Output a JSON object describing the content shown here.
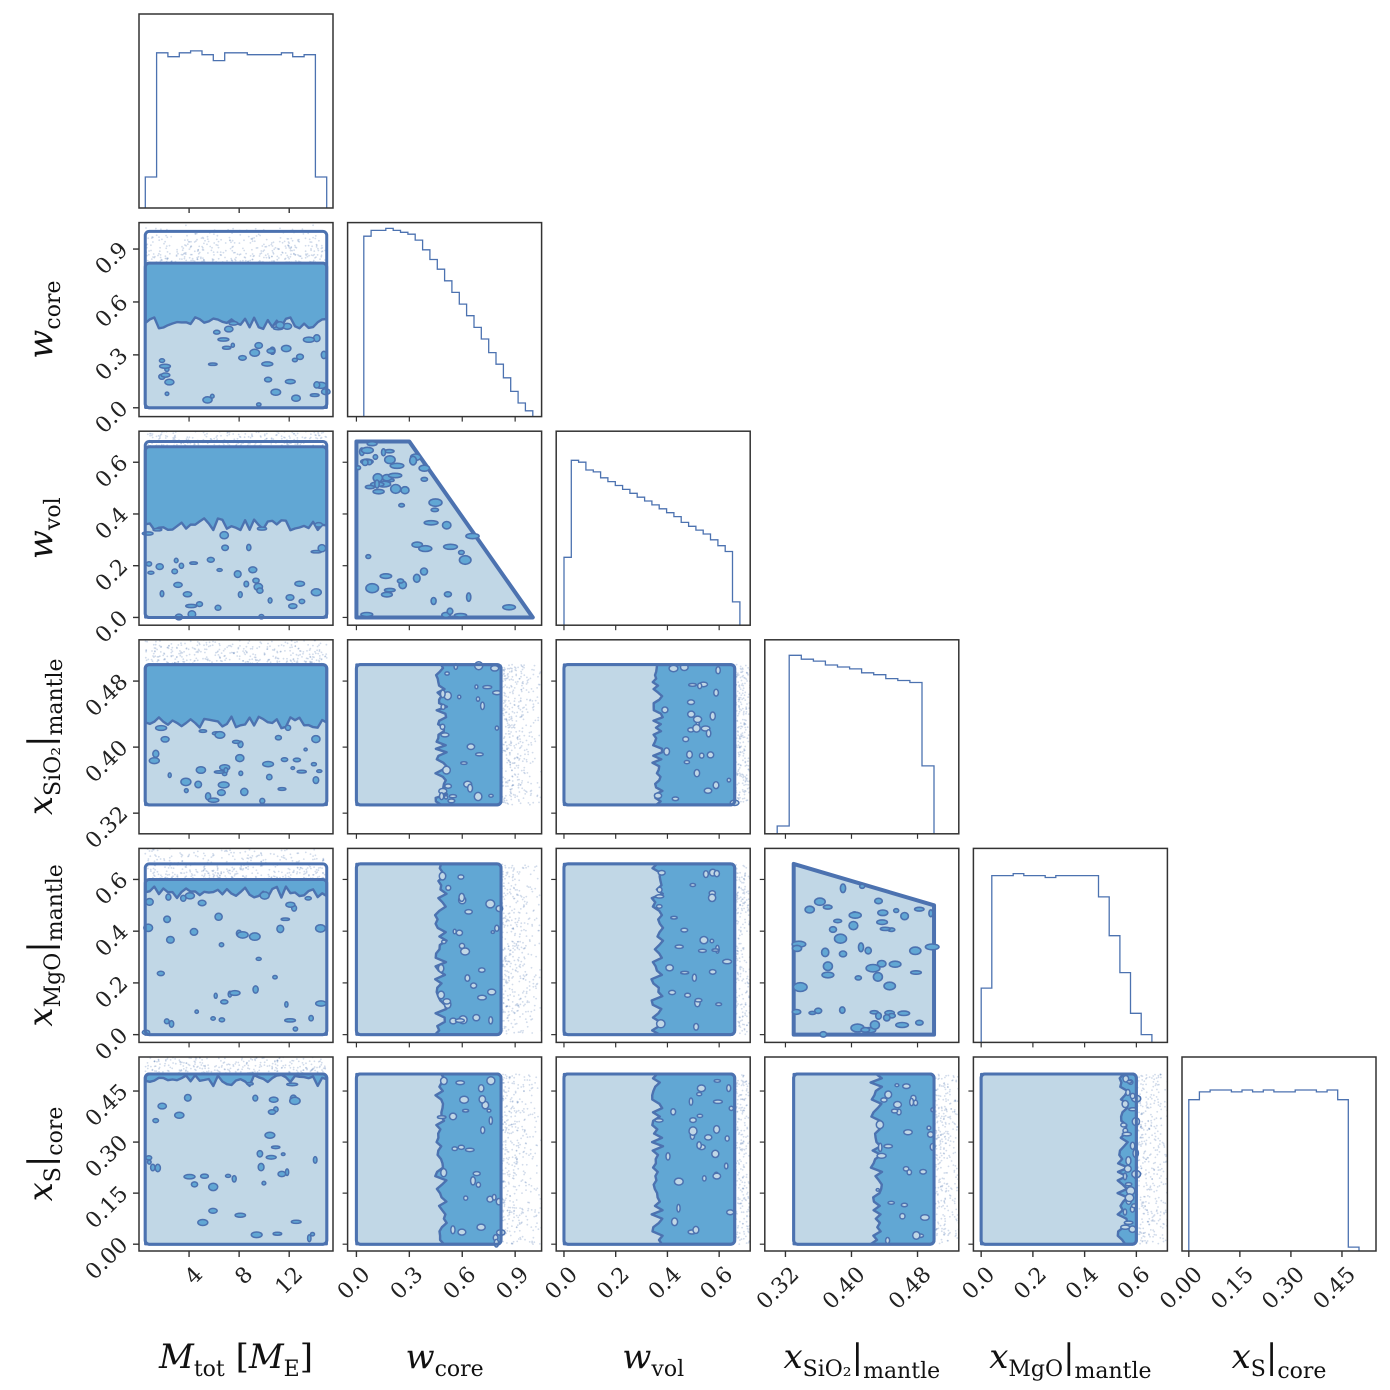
{
  "figure": {
    "type": "corner-plot",
    "n_params": 6
  },
  "colors": {
    "line": "#4c72b0",
    "level1": "#c1d7e6",
    "level2": "#61a7d4",
    "contour": "#4c72b0",
    "points": "#4c72b0",
    "frame": "#333333"
  },
  "params": [
    {
      "id": "Mtot",
      "label": {
        "main": "M",
        "sub": "tot",
        "suffix_pre": " [",
        "suffix_main": "M",
        "suffix_sub": "E",
        "suffix_post": "]"
      },
      "ticks": [
        4,
        8,
        12
      ],
      "tick_labels": [
        "4",
        "8",
        "12"
      ],
      "range": [
        0,
        15.5
      ]
    },
    {
      "id": "wcore",
      "label": {
        "main": "w",
        "sub": "core"
      },
      "ticks": [
        0.0,
        0.3,
        0.6,
        0.9
      ],
      "tick_labels": [
        "0.0",
        "0.3",
        "0.6",
        "0.9"
      ],
      "range": [
        -0.05,
        1.05
      ]
    },
    {
      "id": "wvol",
      "label": {
        "main": "w",
        "sub": "vol"
      },
      "ticks": [
        0.0,
        0.2,
        0.4,
        0.6
      ],
      "tick_labels": [
        "0.0",
        "0.2",
        "0.4",
        "0.6"
      ],
      "range": [
        -0.03,
        0.72
      ]
    },
    {
      "id": "xSiO2",
      "label": {
        "main": "x",
        "sub": "SiO₂",
        "bar": "mantle"
      },
      "ticks": [
        0.32,
        0.4,
        0.48
      ],
      "tick_labels": [
        "0.32",
        "0.40",
        "0.48"
      ],
      "range": [
        0.295,
        0.53
      ]
    },
    {
      "id": "xMgO",
      "label": {
        "main": "x",
        "sub": "MgO",
        "bar": "mantle"
      },
      "ticks": [
        0.0,
        0.2,
        0.4,
        0.6
      ],
      "tick_labels": [
        "0.0",
        "0.2",
        "0.4",
        "0.6"
      ],
      "range": [
        -0.03,
        0.72
      ]
    },
    {
      "id": "xS",
      "label": {
        "main": "x",
        "sub": "S",
        "bar": "core"
      },
      "ticks": [
        0.0,
        0.15,
        0.3,
        0.45
      ],
      "tick_labels": [
        "0.00",
        "0.15",
        "0.30",
        "0.45"
      ],
      "range": [
        -0.02,
        0.55
      ]
    }
  ],
  "chart_data": {
    "type": "corner",
    "histograms": [
      {
        "param": "Mtot",
        "edges_range": [
          0.5,
          15
        ],
        "heights": [
          0.16,
          0.8,
          0.78,
          0.8,
          0.81,
          0.79,
          0.76,
          0.8,
          0.8,
          0.79,
          0.79,
          0.79,
          0.8,
          0.78,
          0.79,
          0.16
        ]
      },
      {
        "param": "wcore",
        "edges_range": [
          0.0,
          1.0
        ],
        "heights": [
          0.0,
          0.93,
          0.96,
          0.96,
          0.97,
          0.96,
          0.95,
          0.94,
          0.91,
          0.86,
          0.81,
          0.76,
          0.7,
          0.64,
          0.58,
          0.52,
          0.46,
          0.4,
          0.33,
          0.27,
          0.2,
          0.13,
          0.07,
          0.03
        ]
      },
      {
        "param": "wvol",
        "edges_range": [
          0.0,
          0.68
        ],
        "heights": [
          0.35,
          0.85,
          0.84,
          0.8,
          0.79,
          0.76,
          0.74,
          0.72,
          0.7,
          0.68,
          0.66,
          0.64,
          0.62,
          0.6,
          0.58,
          0.56,
          0.53,
          0.51,
          0.49,
          0.47,
          0.44,
          0.41,
          0.38,
          0.12
        ]
      },
      {
        "param": "xSiO2",
        "edges_range": [
          0.31,
          0.5
        ],
        "heights": [
          0.04,
          0.92,
          0.9,
          0.89,
          0.87,
          0.86,
          0.85,
          0.83,
          0.82,
          0.8,
          0.79,
          0.78,
          0.35
        ]
      },
      {
        "param": "xMgO",
        "edges_range": [
          0.0,
          0.66
        ],
        "heights": [
          0.28,
          0.86,
          0.86,
          0.87,
          0.86,
          0.86,
          0.85,
          0.86,
          0.86,
          0.86,
          0.86,
          0.75,
          0.55,
          0.36,
          0.15,
          0.04
        ]
      },
      {
        "param": "xS",
        "edges_range": [
          0.0,
          0.5
        ],
        "heights": [
          0.78,
          0.82,
          0.83,
          0.83,
          0.82,
          0.83,
          0.82,
          0.83,
          0.82,
          0.82,
          0.83,
          0.83,
          0.82,
          0.83,
          0.78,
          0.02
        ]
      }
    ],
    "joint": [
      {
        "x": "Mtot",
        "y": "wcore",
        "domain": "rect",
        "x_extent": [
          0.5,
          15
        ],
        "y_extent": [
          0.0,
          1.0
        ],
        "light_upper": 0.48,
        "mid_upper": 0.82,
        "x_mode": false
      },
      {
        "x": "Mtot",
        "y": "wvol",
        "domain": "rect",
        "x_extent": [
          0.5,
          15
        ],
        "y_extent": [
          0.0,
          0.68
        ],
        "light_upper": 0.36,
        "mid_upper": 0.66,
        "x_mode": false
      },
      {
        "x": "wcore",
        "y": "wvol",
        "domain": "triangle",
        "x_extent": [
          0.0,
          1.0
        ],
        "y_extent": [
          0.0,
          0.68
        ],
        "x_at_top": 0.3
      },
      {
        "x": "Mtot",
        "y": "xSiO2",
        "domain": "rect",
        "x_extent": [
          0.5,
          15
        ],
        "y_extent": [
          0.33,
          0.5
        ],
        "light_upper": 0.43,
        "mid_upper": 0.5,
        "x_mode": false
      },
      {
        "x": "wcore",
        "y": "xSiO2",
        "domain": "rect",
        "x_extent": [
          0.0,
          1.0
        ],
        "y_extent": [
          0.33,
          0.5
        ],
        "light_upper": 0.48,
        "mid_upper": 0.82,
        "x_mode": true
      },
      {
        "x": "wvol",
        "y": "xSiO2",
        "domain": "rect",
        "x_extent": [
          0.0,
          0.68
        ],
        "y_extent": [
          0.33,
          0.5
        ],
        "light_upper": 0.36,
        "mid_upper": 0.66,
        "x_mode": true
      },
      {
        "x": "Mtot",
        "y": "xMgO",
        "domain": "rect",
        "x_extent": [
          0.5,
          15
        ],
        "y_extent": [
          0.0,
          0.66
        ],
        "light_upper": 0.55,
        "mid_upper": 0.6,
        "x_mode": false
      },
      {
        "x": "wcore",
        "y": "xMgO",
        "domain": "rect",
        "x_extent": [
          0.0,
          1.0
        ],
        "y_extent": [
          0.0,
          0.66
        ],
        "light_upper": 0.48,
        "mid_upper": 0.82,
        "x_mode": true
      },
      {
        "x": "wvol",
        "y": "xMgO",
        "domain": "rect",
        "x_extent": [
          0.0,
          0.68
        ],
        "y_extent": [
          0.0,
          0.66
        ],
        "light_upper": 0.36,
        "mid_upper": 0.66,
        "x_mode": true
      },
      {
        "x": "xSiO2",
        "y": "xMgO",
        "domain": "trapezoid",
        "x_extent": [
          0.33,
          0.5
        ],
        "y_extent": [
          0.0,
          0.66
        ],
        "y_top_at_xmax": 0.5
      },
      {
        "x": "Mtot",
        "y": "xS",
        "domain": "rect",
        "x_extent": [
          0.5,
          15
        ],
        "y_extent": [
          0.0,
          0.5
        ],
        "light_upper": 0.48,
        "mid_upper": 0.5,
        "x_mode": false
      },
      {
        "x": "wcore",
        "y": "xS",
        "domain": "rect",
        "x_extent": [
          0.0,
          1.0
        ],
        "y_extent": [
          0.0,
          0.5
        ],
        "light_upper": 0.48,
        "mid_upper": 0.82,
        "x_mode": true
      },
      {
        "x": "wvol",
        "y": "xS",
        "domain": "rect",
        "x_extent": [
          0.0,
          0.68
        ],
        "y_extent": [
          0.0,
          0.5
        ],
        "light_upper": 0.36,
        "mid_upper": 0.66,
        "x_mode": true
      },
      {
        "x": "xSiO2",
        "y": "xS",
        "domain": "rect",
        "x_extent": [
          0.33,
          0.5
        ],
        "y_extent": [
          0.0,
          0.5
        ],
        "light_upper": 0.43,
        "mid_upper": 0.5,
        "x_mode": true
      },
      {
        "x": "xMgO",
        "y": "xS",
        "domain": "rect",
        "x_extent": [
          0.0,
          0.66
        ],
        "y_extent": [
          0.0,
          0.5
        ],
        "light_upper": 0.55,
        "mid_upper": 0.6,
        "x_mode": true
      }
    ]
  }
}
